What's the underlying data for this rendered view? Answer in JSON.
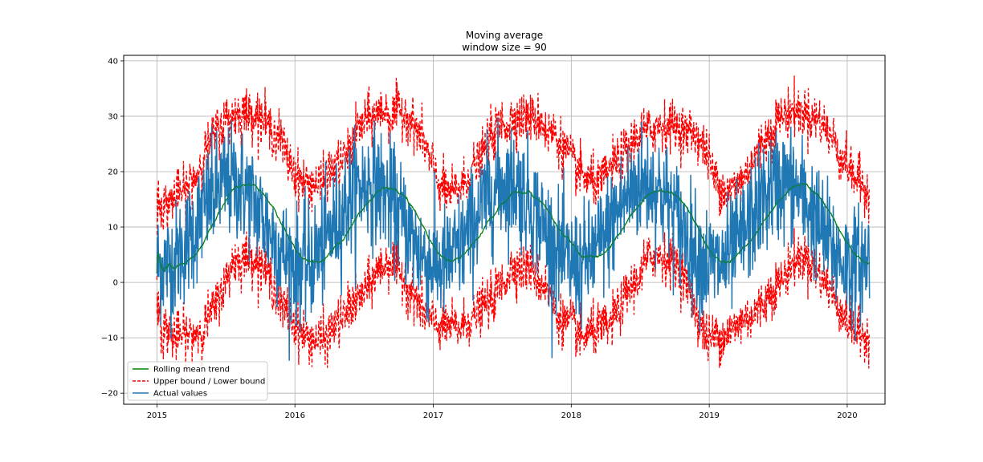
{
  "chart_data": {
    "type": "line",
    "title": [
      "Moving average",
      "window size = 90"
    ],
    "xlabel": "",
    "ylabel": "",
    "x_range": [
      "2014-10-05",
      "2020-04-10"
    ],
    "ylim": [
      -22,
      41
    ],
    "x_ticks": [
      "2015",
      "2016",
      "2017",
      "2018",
      "2019",
      "2020"
    ],
    "y_ticks": [
      "-20",
      "-10",
      "0",
      "10",
      "20",
      "30",
      "40"
    ],
    "grid": true,
    "legend_position": "lower-left",
    "series": [
      {
        "name": "Rolling mean trend",
        "color": "#008000",
        "style": "solid",
        "daily_values_start": "2015-01-01",
        "daily_values_end": "2020-02-29",
        "description_values": "approx. seasonal mean: min ~3 (winter), max ~18 (summer)"
      },
      {
        "name": "Upper bound / Lower bound",
        "color": "#ff0000",
        "style": "dashed"
      },
      {
        "name": "Actual values",
        "color": "#1f77b4",
        "style": "solid"
      }
    ],
    "series_envelope": {
      "actual_min_approx": -12,
      "actual_max_approx": 37,
      "bounds_min_approx": -19,
      "bounds_max_approx": 38
    }
  }
}
